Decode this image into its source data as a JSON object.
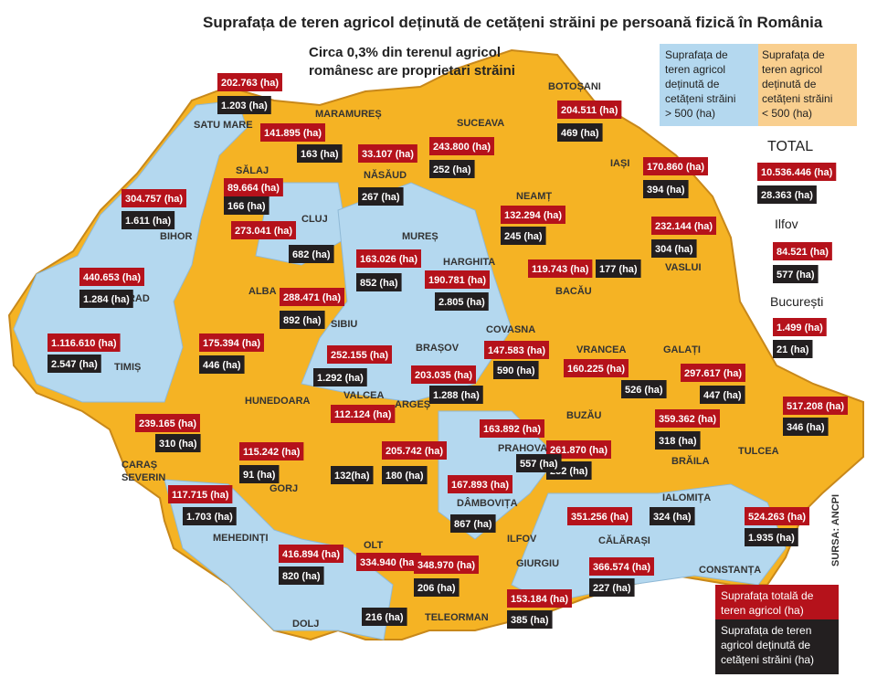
{
  "header": {
    "title": "Suprafața de teren agricol deținută de cetățeni străini pe persoană fizică în România",
    "subtitle": [
      "Circa 0,3% din terenul agricol",
      "românesc are proprietari străini"
    ]
  },
  "legend_top": {
    "blue": [
      "Suprafața de",
      "teren agricol",
      "deținută de",
      "cetățeni străini",
      "> 500 (ha)"
    ],
    "orange": [
      "Suprafața de",
      "teren agricol",
      "deținută de",
      "cetățeni străini",
      "< 500 (ha)"
    ]
  },
  "totals": [
    {
      "name": "TOTAL",
      "total": "10.536.446 (ha)",
      "foreign": "28.363 (ha)"
    },
    {
      "name": "Ilfov",
      "total": "84.521 (ha)",
      "foreign": "577 (ha)"
    },
    {
      "name": "București",
      "total": "1.499 (ha)",
      "foreign": "21 (ha)"
    }
  ],
  "counties": [
    {
      "name": "SATU MARE",
      "total": "202.763 (ha)",
      "foreign": "1.203 (ha)"
    },
    {
      "name": "MARAMUREȘ",
      "total": "141.895 (ha)",
      "foreign": "163 (ha)"
    },
    {
      "name": "NĂSĂUD",
      "total": "33.107 (ha)",
      "foreign": "267 (ha)"
    },
    {
      "name": "SUCEAVA",
      "total": "243.800 (ha)",
      "foreign": "252 (ha)"
    },
    {
      "name": "BOTOȘANI",
      "total": "204.511 (ha)",
      "foreign": "469 (ha)"
    },
    {
      "name": "SĂLAJ",
      "total": "89.664 (ha)",
      "foreign": "166 (ha)"
    },
    {
      "name": "BIHOR",
      "total": "304.757 (ha)",
      "foreign": "1.611 (ha)"
    },
    {
      "name": "CLUJ",
      "total": "273.041 (ha)",
      "foreign": "682 (ha)"
    },
    {
      "name": "IAȘI",
      "total": "170.860 (ha)",
      "foreign": "394 (ha)"
    },
    {
      "name": "NEAMȚ",
      "total": "132.294 (ha)",
      "foreign": "245 (ha)"
    },
    {
      "name": "VASLUI",
      "total": "232.144 (ha)",
      "foreign": "304 (ha)"
    },
    {
      "name": "MUREȘ",
      "total": "163.026 (ha)",
      "foreign": "852 (ha)"
    },
    {
      "name": "HARGHITA",
      "total": "190.781 (ha)",
      "foreign": "2.805 (ha)"
    },
    {
      "name": "BACĂU",
      "total": "119.743 (ha)",
      "foreign": "177 (ha)"
    },
    {
      "name": "ARAD",
      "total": "440.653 (ha)",
      "foreign": "1.284 (ha)"
    },
    {
      "name": "ALBA",
      "total": "288.471 (ha)",
      "foreign": "892 (ha)"
    },
    {
      "name": "SIBIU",
      "total": "252.155 (ha)",
      "foreign": "1.292 (ha)"
    },
    {
      "name": "TIMIȘ",
      "total": "1.116.610 (ha)",
      "foreign": "2.547 (ha)"
    },
    {
      "name": "HUNEDOARA",
      "total": "175.394 (ha)",
      "foreign": "446 (ha)"
    },
    {
      "name": "BRAȘOV",
      "total": "203.035 (ha)",
      "foreign": "1.288 (ha)"
    },
    {
      "name": "COVASNA",
      "total": "147.583 (ha)",
      "foreign": "590 (ha)"
    },
    {
      "name": "VRANCEA",
      "total": "160.225 (ha)",
      "foreign": "526 (ha)"
    },
    {
      "name": "GALAȚI",
      "total": "297.617 (ha)",
      "foreign": "447 (ha)"
    },
    {
      "name": [
        "CARAȘ",
        "SEVERIN"
      ],
      "total": "239.165 (ha)",
      "foreign": "310 (ha)"
    },
    {
      "name": "VALCEA",
      "total": "112.124 (ha)",
      "foreign": "132(ha)"
    },
    {
      "name": "ARGEȘ",
      "total": "205.742 (ha)",
      "foreign": "180 (ha)"
    },
    {
      "name": "BUZĂU",
      "total": "261.870 (ha)",
      "foreign": "252 (ha)"
    },
    {
      "name": "BRĂILA",
      "total": "359.362 (ha)",
      "foreign": "318 (ha)"
    },
    {
      "name": "TULCEA",
      "total": "517.208 (ha)",
      "foreign": "346 (ha)"
    },
    {
      "name": "PRAHOVA",
      "total": "163.892 (ha)",
      "foreign": "557 (ha)"
    },
    {
      "name": "GORJ",
      "total": "115.242 (ha)",
      "foreign": "91 (ha)"
    },
    {
      "name": "MEHEDINȚI",
      "total": "117.715 (ha)",
      "foreign": "1.703 (ha)"
    },
    {
      "name": "DÂMBOVIȚA",
      "total": "167.893 (ha)",
      "foreign": "867 (ha)"
    },
    {
      "name": "IALOMIȚA",
      "total": "351.256 (ha)",
      "foreign": "324 (ha)"
    },
    {
      "name": "CONSTANȚA",
      "total": "524.263 (ha)",
      "foreign": "1.935 (ha)"
    },
    {
      "name": "DOLJ",
      "total": "416.894 (ha)",
      "foreign": "820 (ha)"
    },
    {
      "name": "OLT",
      "total": "334.940 (ha)",
      "foreign": "216 (ha)"
    },
    {
      "name": "TELEORMAN",
      "total": "348.970 (ha)",
      "foreign": "206 (ha)"
    },
    {
      "name": "GIURGIU",
      "total": "153.184 (ha)",
      "foreign": "385 (ha)"
    },
    {
      "name": "CĂLĂRAȘI",
      "total": "366.574 (ha)",
      "foreign": "227 (ha)"
    }
  ],
  "map_labels": {
    "ilfov": "ILFOV",
    "source": "SURSA: ANCPI"
  },
  "legend_bottom": {
    "red": [
      "Suprafața totală de",
      "teren agricol (ha)"
    ],
    "dark": [
      "Suprafața de teren",
      "agricol deținută de",
      "cetățeni străini (ha)"
    ]
  }
}
